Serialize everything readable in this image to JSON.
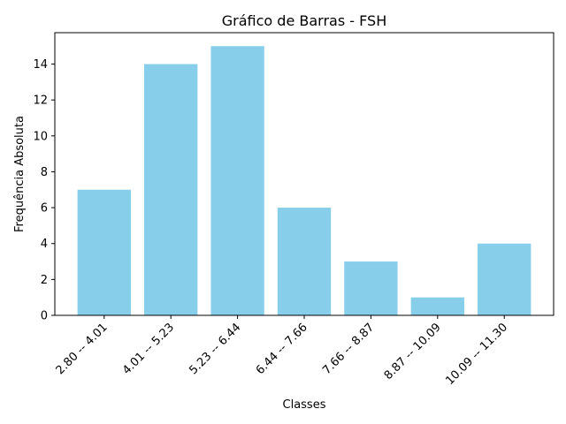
{
  "chart_data": {
    "type": "bar",
    "title": "Gráfico de Barras - FSH",
    "xlabel": "Classes",
    "ylabel": "Frequência Absoluta",
    "categories": [
      "2.80 -- 4.01",
      "4.01 -- 5.23",
      "5.23 -- 6.44",
      "6.44 -- 7.66",
      "7.66 -- 8.87",
      "8.87 -- 10.09",
      "10.09 -- 11.30"
    ],
    "values": [
      7,
      14,
      15,
      6,
      3,
      1,
      4
    ],
    "ylim": [
      0,
      15.75
    ],
    "yticks": [
      0,
      2,
      4,
      6,
      8,
      10,
      12,
      14
    ],
    "grid": false,
    "bar_color": "#87ceeb"
  }
}
